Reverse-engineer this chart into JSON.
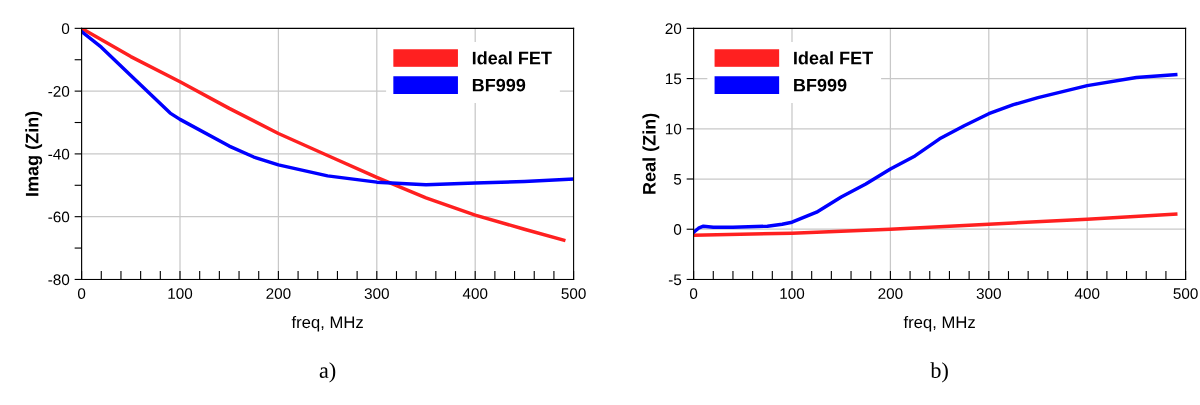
{
  "chart_data": [
    {
      "type": "line",
      "xlabel": "freq, MHz",
      "ylabel": "Imag (Zin)",
      "annotations": [
        "a)"
      ],
      "xlim": [
        0,
        500
      ],
      "ylim": [
        -80,
        0
      ],
      "xticks": [
        0,
        {
          "value": 20,
          "label": null
        },
        {
          "value": 40,
          "label": null
        },
        {
          "value": 60,
          "label": null
        },
        {
          "value": 80,
          "label": null
        },
        100,
        {
          "value": 120,
          "label": null
        },
        {
          "value": 140,
          "label": null
        },
        {
          "value": 160,
          "label": null
        },
        {
          "value": 180,
          "label": null
        },
        200,
        {
          "value": 220,
          "label": null
        },
        {
          "value": 240,
          "label": null
        },
        {
          "value": 260,
          "label": null
        },
        {
          "value": 280,
          "label": null
        },
        300,
        {
          "value": 320,
          "label": null
        },
        {
          "value": 340,
          "label": null
        },
        {
          "value": 360,
          "label": null
        },
        {
          "value": 380,
          "label": null
        },
        400,
        {
          "value": 420,
          "label": null
        },
        {
          "value": 440,
          "label": null
        },
        {
          "value": 460,
          "label": null
        },
        {
          "value": 480,
          "label": null
        },
        500
      ],
      "yticks": [
        -80,
        {
          "value": -70,
          "label": null
        },
        -60,
        {
          "value": -50,
          "label": null
        },
        -40,
        {
          "value": -30,
          "label": null
        },
        -20,
        {
          "value": -10,
          "label": null
        },
        0
      ],
      "grid": true,
      "legend": "top right",
      "series": [
        {
          "name": "Ideal FET",
          "color": "#ff2020",
          "x": [
            0,
            50,
            100,
            150,
            200,
            250,
            300,
            350,
            400,
            450,
            490
          ],
          "values": [
            0,
            -9,
            -17,
            -25.5,
            -33.5,
            -40.5,
            -47.5,
            -54,
            -59.5,
            -64,
            -67.5
          ]
        },
        {
          "name": "BF999",
          "color": "#0000ff",
          "x": [
            0,
            20,
            50,
            90,
            100,
            150,
            175,
            200,
            250,
            300,
            350,
            400,
            450,
            500
          ],
          "values": [
            -1,
            -6,
            -15,
            -27,
            -29,
            -37.5,
            -41,
            -43.5,
            -47,
            -49,
            -49.8,
            -49.3,
            -48.8,
            -48
          ]
        }
      ]
    },
    {
      "type": "line",
      "xlabel": "freq, MHz",
      "ylabel": "Real (Zin)",
      "annotations": [
        "b)"
      ],
      "xlim": [
        0,
        500
      ],
      "ylim": [
        -5,
        20
      ],
      "xticks": [
        0,
        {
          "value": 20,
          "label": null
        },
        {
          "value": 40,
          "label": null
        },
        {
          "value": 60,
          "label": null
        },
        {
          "value": 80,
          "label": null
        },
        100,
        {
          "value": 120,
          "label": null
        },
        {
          "value": 140,
          "label": null
        },
        {
          "value": 160,
          "label": null
        },
        {
          "value": 180,
          "label": null
        },
        200,
        {
          "value": 220,
          "label": null
        },
        {
          "value": 240,
          "label": null
        },
        {
          "value": 260,
          "label": null
        },
        {
          "value": 280,
          "label": null
        },
        300,
        {
          "value": 320,
          "label": null
        },
        {
          "value": 340,
          "label": null
        },
        {
          "value": 360,
          "label": null
        },
        {
          "value": 380,
          "label": null
        },
        400,
        {
          "value": 420,
          "label": null
        },
        {
          "value": 440,
          "label": null
        },
        {
          "value": 460,
          "label": null
        },
        {
          "value": 480,
          "label": null
        },
        500
      ],
      "yticks": [
        -5,
        0,
        5,
        10,
        15,
        20
      ],
      "grid": true,
      "legend": "top left",
      "series": [
        {
          "name": "Ideal FET",
          "color": "#ff2020",
          "x": [
            0,
            100,
            200,
            300,
            400,
            490
          ],
          "values": [
            -0.6,
            -0.4,
            0,
            0.5,
            1,
            1.5
          ]
        },
        {
          "name": "BF999",
          "color": "#0000ff",
          "x": [
            0,
            5,
            10,
            20,
            40,
            75,
            90,
            100,
            125,
            150,
            175,
            200,
            225,
            250,
            275,
            300,
            325,
            350,
            400,
            450,
            490
          ],
          "values": [
            -0.3,
            0.1,
            0.3,
            0.2,
            0.2,
            0.3,
            0.5,
            0.7,
            1.7,
            3.2,
            4.5,
            6,
            7.3,
            9,
            10.3,
            11.5,
            12.4,
            13.1,
            14.3,
            15.1,
            15.4
          ]
        }
      ]
    }
  ]
}
